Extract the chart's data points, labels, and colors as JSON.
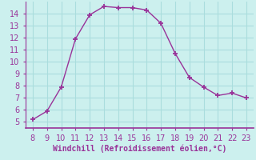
{
  "x": [
    8,
    9,
    10,
    11,
    12,
    13,
    14,
    15,
    16,
    17,
    18,
    19,
    20,
    21,
    22,
    23
  ],
  "y": [
    5.2,
    5.9,
    7.9,
    11.9,
    13.9,
    14.6,
    14.5,
    14.5,
    14.3,
    13.2,
    10.7,
    8.7,
    7.9,
    7.2,
    7.4,
    7.0
  ],
  "line_color": "#993399",
  "marker": "+",
  "marker_color": "#993399",
  "xlabel": "Windchill (Refroidissement éolien,°C)",
  "xlabel_color": "#993399",
  "bg_color": "#ccf0ee",
  "grid_color": "#aadddd",
  "tick_color": "#993399",
  "spine_color": "#993399",
  "xlim": [
    7.5,
    23.5
  ],
  "ylim": [
    4.5,
    15.0
  ],
  "xticks": [
    8,
    9,
    10,
    11,
    12,
    13,
    14,
    15,
    16,
    17,
    18,
    19,
    20,
    21,
    22,
    23
  ],
  "yticks": [
    5,
    6,
    7,
    8,
    9,
    10,
    11,
    12,
    13,
    14
  ],
  "font_size": 7.0
}
